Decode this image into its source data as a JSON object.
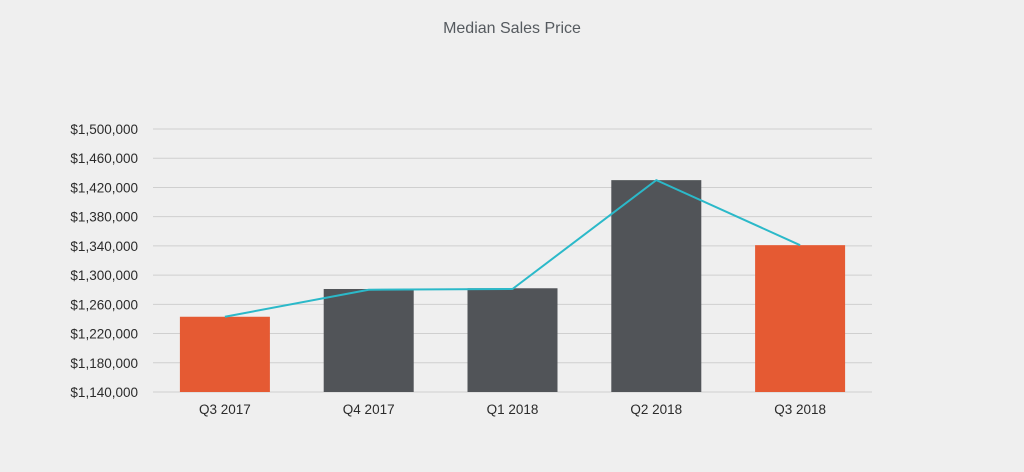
{
  "chart_data": {
    "type": "bar",
    "title": "Median Sales Price",
    "categories": [
      "Q3 2017",
      "Q4 2017",
      "Q1 2018",
      "Q2 2018",
      "Q3 2018"
    ],
    "series": [
      {
        "type": "bar",
        "values": [
          1243000,
          1281000,
          1282000,
          1430000,
          1341000
        ],
        "colors": [
          "#e55a33",
          "#515458",
          "#515458",
          "#515458",
          "#e55a33"
        ]
      },
      {
        "type": "line",
        "values": [
          1243000,
          1280000,
          1281000,
          1430000,
          1341000
        ],
        "color": "#2bb9c9"
      }
    ],
    "ylim": [
      1140000,
      1500000
    ],
    "yticks": [
      1140000,
      1180000,
      1220000,
      1260000,
      1300000,
      1340000,
      1380000,
      1420000,
      1460000,
      1500000
    ],
    "ytick_labels": [
      "$1,140,000",
      "$1,180,000",
      "$1,220,000",
      "$1,260,000",
      "$1,300,000",
      "$1,340,000",
      "$1,380,000",
      "$1,420,000",
      "$1,460,000",
      "$1,500,000"
    ],
    "grid": true,
    "legend": "none"
  }
}
